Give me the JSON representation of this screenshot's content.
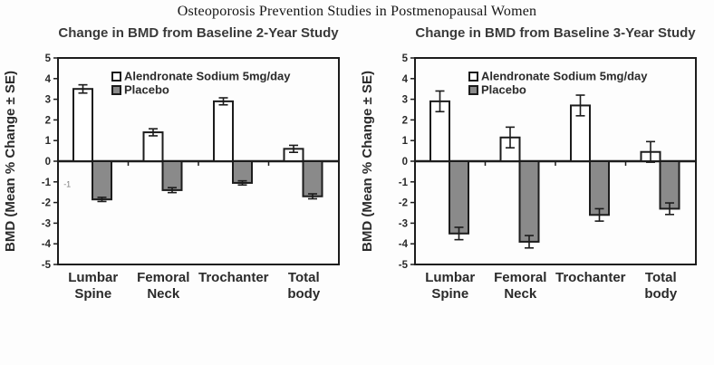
{
  "page": {
    "title": "Osteoporosis Prevention Studies in Postmenopausal Women"
  },
  "colors": {
    "alendronate_fill": "#ffffff",
    "placebo_fill": "#8a8a8a",
    "stroke": "#1c1c1c",
    "axis_text": "#2a2a2a",
    "annotation_text": "#7d7d7d"
  },
  "chart_data": [
    {
      "type": "bar",
      "title": "Change in BMD from Baseline 2-Year Study",
      "ylabel": "BMD (Mean % Change ± SE)",
      "xlabel": "",
      "ylim": [
        -5,
        5
      ],
      "yticks": [
        5,
        4,
        3,
        2,
        1,
        0,
        -1,
        -2,
        -3,
        -4,
        -5
      ],
      "grid": false,
      "legend_position": "top-inside",
      "categories": [
        "Lumbar Spine",
        "Femoral Neck",
        "Trochanter",
        "Total body"
      ],
      "series": [
        {
          "name": "Alendronate Sodium 5mg/day",
          "values": [
            3.5,
            1.4,
            2.9,
            0.6
          ],
          "se": [
            0.2,
            0.17,
            0.17,
            0.17
          ]
        },
        {
          "name": "Placebo",
          "values": [
            -1.85,
            -1.4,
            -1.05,
            -1.7
          ],
          "se": [
            0.1,
            0.12,
            0.1,
            0.12
          ]
        }
      ],
      "annotations": [
        {
          "text": "-1",
          "x_frac": 0.02,
          "y_value": -1.25
        }
      ]
    },
    {
      "type": "bar",
      "title": "Change in BMD from Baseline 3-Year Study",
      "ylabel": "BMD (Mean % Change ± SE)",
      "xlabel": "",
      "ylim": [
        -5,
        5
      ],
      "yticks": [
        5,
        4,
        3,
        2,
        1,
        0,
        -1,
        -2,
        -3,
        -4,
        -5
      ],
      "grid": false,
      "legend_position": "top-inside",
      "categories": [
        "Lumbar Spine",
        "Femoral Neck",
        "Trochanter",
        "Total body"
      ],
      "series": [
        {
          "name": "Alendronate Sodium 5mg/day",
          "values": [
            2.9,
            1.15,
            2.7,
            0.45
          ],
          "se": [
            0.5,
            0.5,
            0.5,
            0.5
          ]
        },
        {
          "name": "Placebo",
          "values": [
            -3.5,
            -3.9,
            -2.6,
            -2.3
          ],
          "se": [
            0.3,
            0.3,
            0.3,
            0.28
          ]
        }
      ],
      "annotations": []
    }
  ]
}
